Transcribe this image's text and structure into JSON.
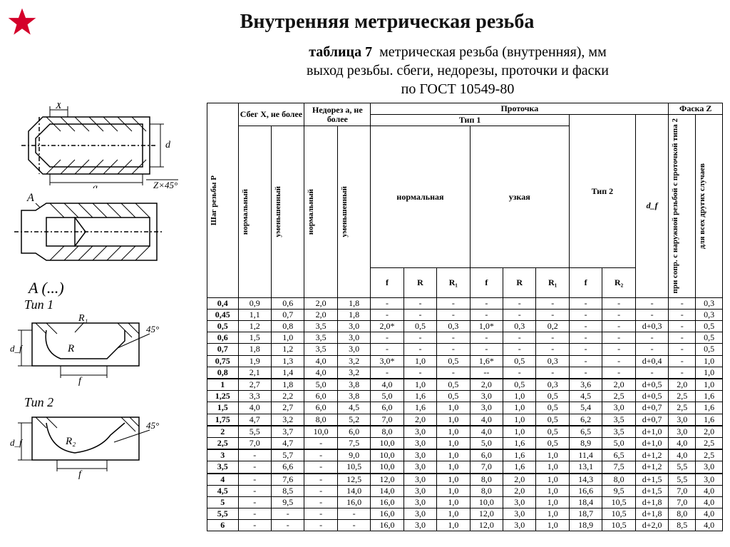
{
  "title": "Внутренняя метрическая резьба",
  "subtitle_bold": "таблица 7",
  "subtitle_rest_1": "метрическая резьба (внутренняя), мм",
  "subtitle_line2": "выход резьбы. сбеги, недорезы, проточки и фаски",
  "subtitle_line3": "по ГОСТ 10549-80",
  "diagrams": {
    "X": "X",
    "d": "d",
    "a": "a",
    "Zx45": "Z×45°",
    "A": "A",
    "A_detail": "A (...)",
    "Tip1": "Тип 1",
    "Tip2": "Тип 2",
    "R": "R",
    "R1": "R₁",
    "R2": "R₂",
    "f": "f",
    "df": "d_f",
    "ang45": "45°"
  },
  "headers": {
    "pitch": "Шаг резьбы P",
    "sbeg": "Сбег X, не более",
    "nedorez": "Недорез a, не более",
    "protochka": "Проточка",
    "faska": "Фаска Z",
    "tip1": "Тип 1",
    "tip2": "Тип 2",
    "normal": "нормальная",
    "narrow": "узкая",
    "norm_v": "нормальный",
    "umen_v": "уменьшенный",
    "f": "f",
    "R": "R",
    "R1": "R₁",
    "R2": "R₂",
    "df": "d_f",
    "z1": "при сопр. с наружной резьбой с проточкой типа 2",
    "z2": "для всех других случаев"
  },
  "rows": [
    [
      "0,4",
      "0,9",
      "0,6",
      "2,0",
      "1,8",
      "-",
      "-",
      "-",
      "-",
      "-",
      "-",
      "-",
      "-",
      "-",
      "-",
      "0,3"
    ],
    [
      "0,45",
      "1,1",
      "0,7",
      "2,0",
      "1,8",
      "-",
      "-",
      "-",
      "-",
      "-",
      "-",
      "-",
      "-",
      "-",
      "-",
      "0,3"
    ],
    [
      "0,5",
      "1,2",
      "0,8",
      "3,5",
      "3,0",
      "2,0*",
      "0,5",
      "0,3",
      "1,0*",
      "0,3",
      "0,2",
      "-",
      "-",
      "d+0,3",
      "-",
      "0,5"
    ],
    [
      "0,6",
      "1,5",
      "1,0",
      "3,5",
      "3,0",
      "-",
      "-",
      "-",
      "-",
      "-",
      "-",
      "-",
      "-",
      "-",
      "-",
      "0,5"
    ],
    [
      "0,7",
      "1,8",
      "1,2",
      "3,5",
      "3,0",
      "-",
      "-",
      "-",
      "-",
      "-",
      "-",
      "-",
      "-",
      "-",
      "-",
      "0,5"
    ],
    [
      "0,75",
      "1,9",
      "1,3",
      "4,0",
      "3,2",
      "3,0*",
      "1,0",
      "0,5",
      "1,6*",
      "0,5",
      "0,3",
      "-",
      "-",
      "d+0,4",
      "-",
      "1,0"
    ],
    [
      "0,8",
      "2,1",
      "1,4",
      "4,0",
      "3,2",
      "-",
      "-",
      "-",
      "--",
      "-",
      "-",
      "-",
      "-",
      "-",
      "-",
      "1,0"
    ],
    [
      "1",
      "2,7",
      "1,8",
      "5,0",
      "3,8",
      "4,0",
      "1,0",
      "0,5",
      "2,0",
      "0,5",
      "0,3",
      "3,6",
      "2,0",
      "d+0,5",
      "2,0",
      "1,0"
    ],
    [
      "1,25",
      "3,3",
      "2,2",
      "6,0",
      "3,8",
      "5,0",
      "1,6",
      "0,5",
      "3,0",
      "1,0",
      "0,5",
      "4,5",
      "2,5",
      "d+0,5",
      "2,5",
      "1,6"
    ],
    [
      "1,5",
      "4,0",
      "2,7",
      "6,0",
      "4,5",
      "6,0",
      "1,6",
      "1,0",
      "3,0",
      "1,0",
      "0,5",
      "5,4",
      "3,0",
      "d+0,7",
      "2,5",
      "1,6"
    ],
    [
      "1,75",
      "4,7",
      "3,2",
      "8,0",
      "5,2",
      "7,0",
      "2,0",
      "1,0",
      "4,0",
      "1,0",
      "0,5",
      "6,2",
      "3,5",
      "d+0,7",
      "3,0",
      "1,6"
    ],
    [
      "2",
      "5,5",
      "3,7",
      "10,0",
      "6,0",
      "8,0",
      "3,0",
      "1,0",
      "4,0",
      "1,0",
      "0,5",
      "6,5",
      "3,5",
      "d+1,0",
      "3,0",
      "2,0"
    ],
    [
      "2,5",
      "7,0",
      "4,7",
      "-",
      "7,5",
      "10,0",
      "3,0",
      "1,0",
      "5,0",
      "1,6",
      "0,5",
      "8,9",
      "5,0",
      "d+1,0",
      "4,0",
      "2,5"
    ],
    [
      "3",
      "-",
      "5,7",
      "-",
      "9,0",
      "10,0",
      "3,0",
      "1,0",
      "6,0",
      "1,6",
      "1,0",
      "11,4",
      "6,5",
      "d+1,2",
      "4,0",
      "2,5"
    ],
    [
      "3,5",
      "-",
      "6,6",
      "-",
      "10,5",
      "10,0",
      "3,0",
      "1,0",
      "7,0",
      "1,6",
      "1,0",
      "13,1",
      "7,5",
      "d+1,2",
      "5,5",
      "3,0"
    ],
    [
      "4",
      "-",
      "7,6",
      "-",
      "12,5",
      "12,0",
      "3,0",
      "1,0",
      "8,0",
      "2,0",
      "1,0",
      "14,3",
      "8,0",
      "d+1,5",
      "5,5",
      "3,0"
    ],
    [
      "4,5",
      "-",
      "8,5",
      "-",
      "14,0",
      "14,0",
      "3,0",
      "1,0",
      "8,0",
      "2,0",
      "1,0",
      "16,6",
      "9,5",
      "d+1,5",
      "7,0",
      "4,0"
    ],
    [
      "5",
      "-",
      "9,5",
      "-",
      "16,0",
      "16,0",
      "3,0",
      "1,0",
      "10,0",
      "3,0",
      "1,0",
      "18,4",
      "10,5",
      "d+1,8",
      "7,0",
      "4,0"
    ],
    [
      "5,5",
      "-",
      "-",
      "-",
      "-",
      "16,0",
      "3,0",
      "1,0",
      "12,0",
      "3,0",
      "1,0",
      "18,7",
      "10,5",
      "d+1,8",
      "8,0",
      "4,0"
    ],
    [
      "6",
      "-",
      "-",
      "-",
      "-",
      "16,0",
      "3,0",
      "1,0",
      "12,0",
      "3,0",
      "1,0",
      "18,9",
      "10,5",
      "d+2,0",
      "8,5",
      "4,0"
    ]
  ],
  "separators_before": [
    7,
    11,
    13,
    15
  ]
}
